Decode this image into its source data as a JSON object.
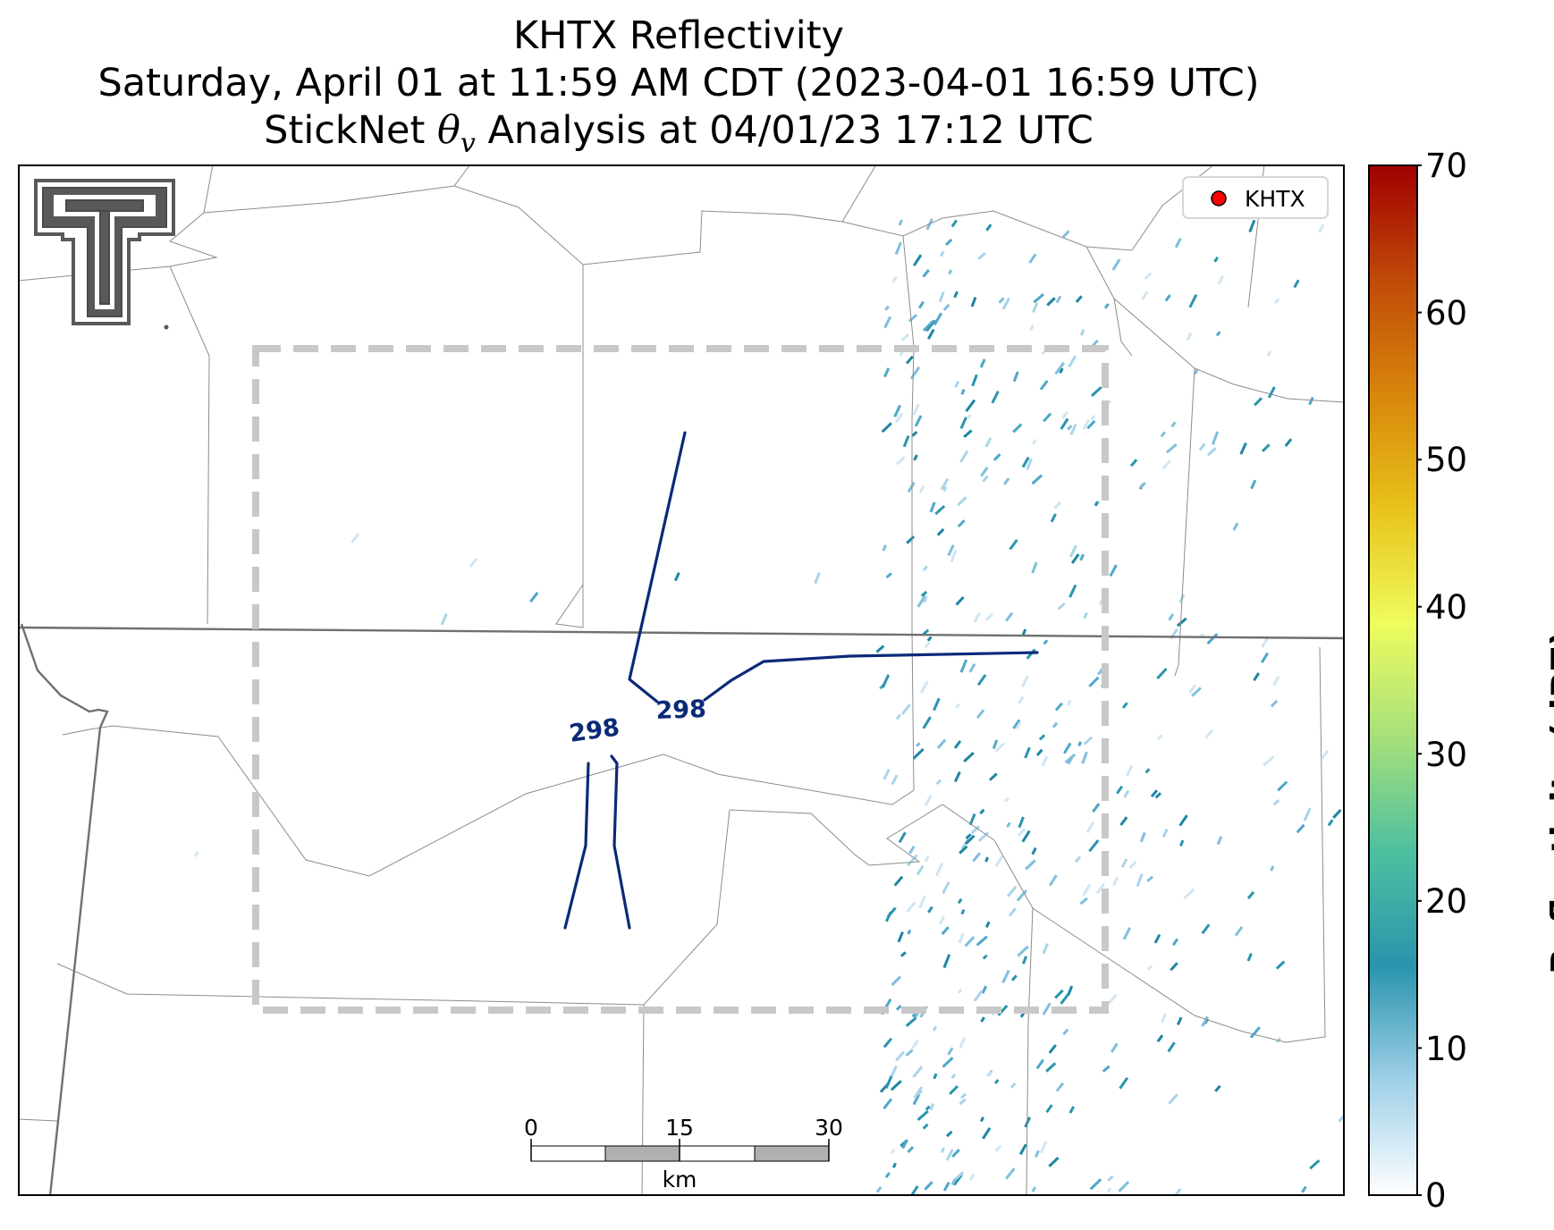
{
  "title": {
    "line1": "KHTX Reflectivity",
    "line2": "Saturday, April 01 at 11:59 AM CDT (2023-04-01 16:59 UTC)",
    "line3_prefix": "StickNet ",
    "line3_theta": "θ",
    "line3_sub": "v",
    "line3_suffix": " Analysis at 04/01/23 17:12 UTC"
  },
  "legend": {
    "label": "KHTX",
    "marker_color": "#ff0000"
  },
  "contour_labels": [
    "298",
    "298"
  ],
  "contour_color": "#0a2a78",
  "scalebar": {
    "ticks": [
      "0",
      "15",
      "30"
    ],
    "unit": "km"
  },
  "colorbar": {
    "label": "Reflectivity (dBZ)",
    "ticks": [
      "0",
      "10",
      "20",
      "30",
      "40",
      "50",
      "60",
      "70"
    ],
    "min": 0,
    "max": 70,
    "colors": [
      "#ffffff",
      "#9fd0e8",
      "#2a94ad",
      "#4dc0a0",
      "#a6e07a",
      "#eefc5e",
      "#e8c21a",
      "#d8860c",
      "#c04a08",
      "#a00000"
    ]
  },
  "logo": {
    "text": "TT"
  }
}
